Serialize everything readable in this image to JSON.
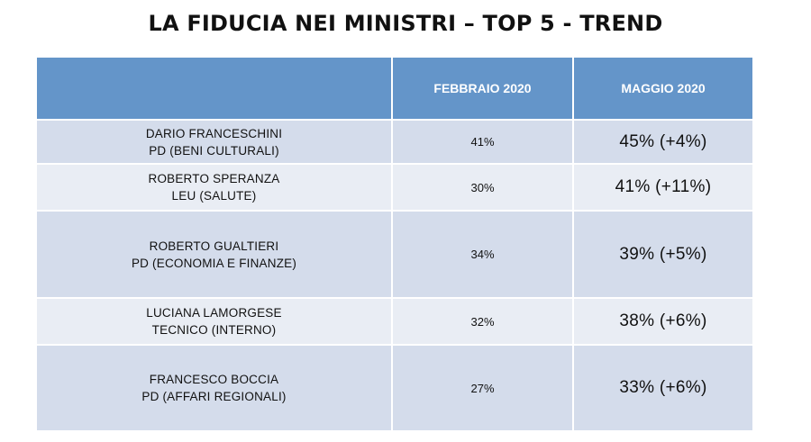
{
  "title": "LA FIDUCIA NEI MINISTRI – TOP 5 - TREND",
  "table": {
    "headers": [
      "",
      "FEBBRAIO 2020",
      "MAGGIO 2020"
    ],
    "rows": [
      {
        "name": "DARIO FRANCESCHINI",
        "role": "PD (BENI CULTURALI)",
        "feb": "41%",
        "may": "45% (+4%)"
      },
      {
        "name": "ROBERTO SPERANZA",
        "role": "LEU (SALUTE)",
        "feb": "30%",
        "may": "41% (+11%)"
      },
      {
        "name": "ROBERTO GUALTIERI",
        "role": "PD (ECONOMIA E FINANZE)",
        "feb": "34%",
        "may": "39% (+5%)"
      },
      {
        "name": "LUCIANA LAMORGESE",
        "role": "TECNICO (INTERNO)",
        "feb": "32%",
        "may": "38% (+6%)"
      },
      {
        "name": "FRANCESCO BOCCIA",
        "role": "PD (AFFARI REGIONALI)",
        "feb": "27%",
        "may": "33% (+6%)"
      }
    ]
  }
}
